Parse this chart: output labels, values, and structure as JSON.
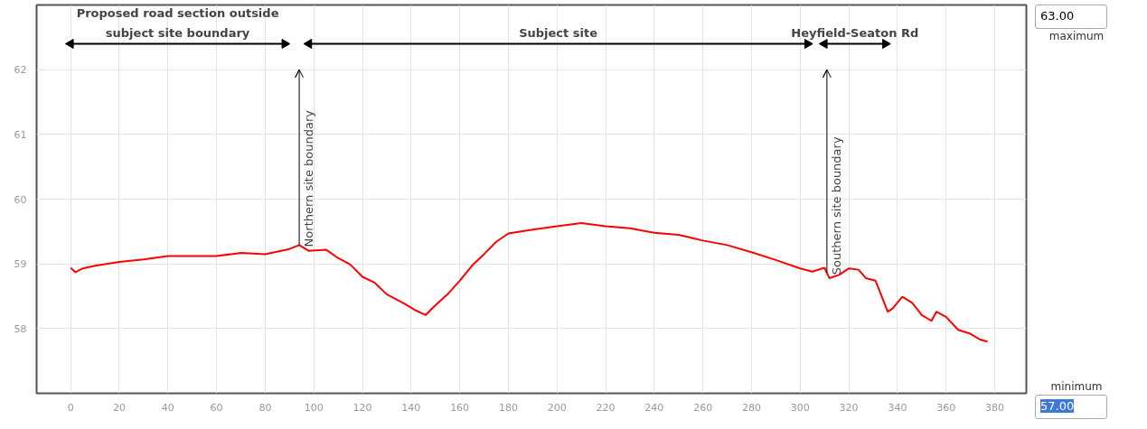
{
  "chart_data": {
    "type": "line",
    "x": [
      0,
      2,
      5,
      10,
      20,
      30,
      40,
      50,
      60,
      70,
      80,
      90,
      94,
      98,
      105,
      110,
      115,
      120,
      125,
      130,
      137,
      142,
      146,
      150,
      155,
      160,
      165,
      170,
      175,
      180,
      190,
      200,
      210,
      220,
      230,
      240,
      250,
      260,
      270,
      280,
      290,
      300,
      305,
      310,
      312,
      316,
      320,
      324,
      327,
      331,
      336,
      338,
      342,
      346,
      350,
      354,
      356,
      360,
      365,
      370,
      374,
      377
    ],
    "series": [
      {
        "color": "#ff0000",
        "values": [
          58.94,
          58.87,
          58.93,
          58.97,
          59.03,
          59.07,
          59.12,
          59.12,
          59.12,
          59.17,
          59.15,
          59.23,
          59.29,
          59.2,
          59.22,
          59.09,
          58.99,
          58.8,
          58.71,
          58.53,
          58.39,
          58.28,
          58.21,
          58.36,
          58.53,
          58.74,
          58.97,
          59.15,
          59.34,
          59.47,
          59.53,
          59.58,
          59.63,
          59.58,
          59.55,
          59.48,
          59.45,
          59.36,
          59.29,
          59.18,
          59.06,
          58.93,
          58.88,
          58.94,
          58.78,
          58.83,
          58.93,
          58.91,
          58.78,
          58.74,
          58.26,
          58.31,
          58.49,
          58.4,
          58.21,
          58.12,
          58.26,
          58.18,
          57.98,
          57.92,
          57.83,
          57.8
        ]
      },
      {
        "type": "line",
        "color": "#000000",
        "marker": "triangle",
        "x": [
          0,
          88
        ],
        "values": [
          62.4,
          62.4
        ]
      },
      {
        "type": "line",
        "color": "#000000",
        "marker": "triangle",
        "x": [
          98,
          303
        ],
        "values": [
          62.4,
          62.4
        ]
      },
      {
        "type": "line",
        "color": "#000000",
        "marker": "triangle",
        "x": [
          310,
          335
        ],
        "values": [
          62.4,
          62.4
        ]
      }
    ],
    "xlim": [
      -14,
      393
    ],
    "ylim": [
      57,
      63
    ],
    "xticks": [
      0,
      20,
      40,
      60,
      80,
      100,
      120,
      140,
      160,
      180,
      200,
      220,
      240,
      260,
      280,
      300,
      320,
      340,
      360,
      380
    ],
    "yticks": [
      58,
      59,
      60,
      61,
      62
    ],
    "grid": true,
    "marker": "none",
    "line_style": "solid",
    "ref_lines": [
      {
        "axis": "x",
        "value": 94,
        "label": "Northern site boundary",
        "color": "#000000"
      },
      {
        "axis": "x",
        "value": 311,
        "label": "Southern site boundary",
        "color": "#000000"
      }
    ],
    "annotations": [
      {
        "text": "Proposed road section outside\nsubject site boundary",
        "x": 44,
        "y": 62.4
      },
      {
        "text": "Subject site",
        "x": 200.5,
        "y": 62.4
      },
      {
        "text": "Heyfield-Seaton Rd",
        "x": 322.5,
        "y": 62.4
      },
      "63.00",
      "maximum",
      "minimum",
      "57.00"
    ]
  }
}
